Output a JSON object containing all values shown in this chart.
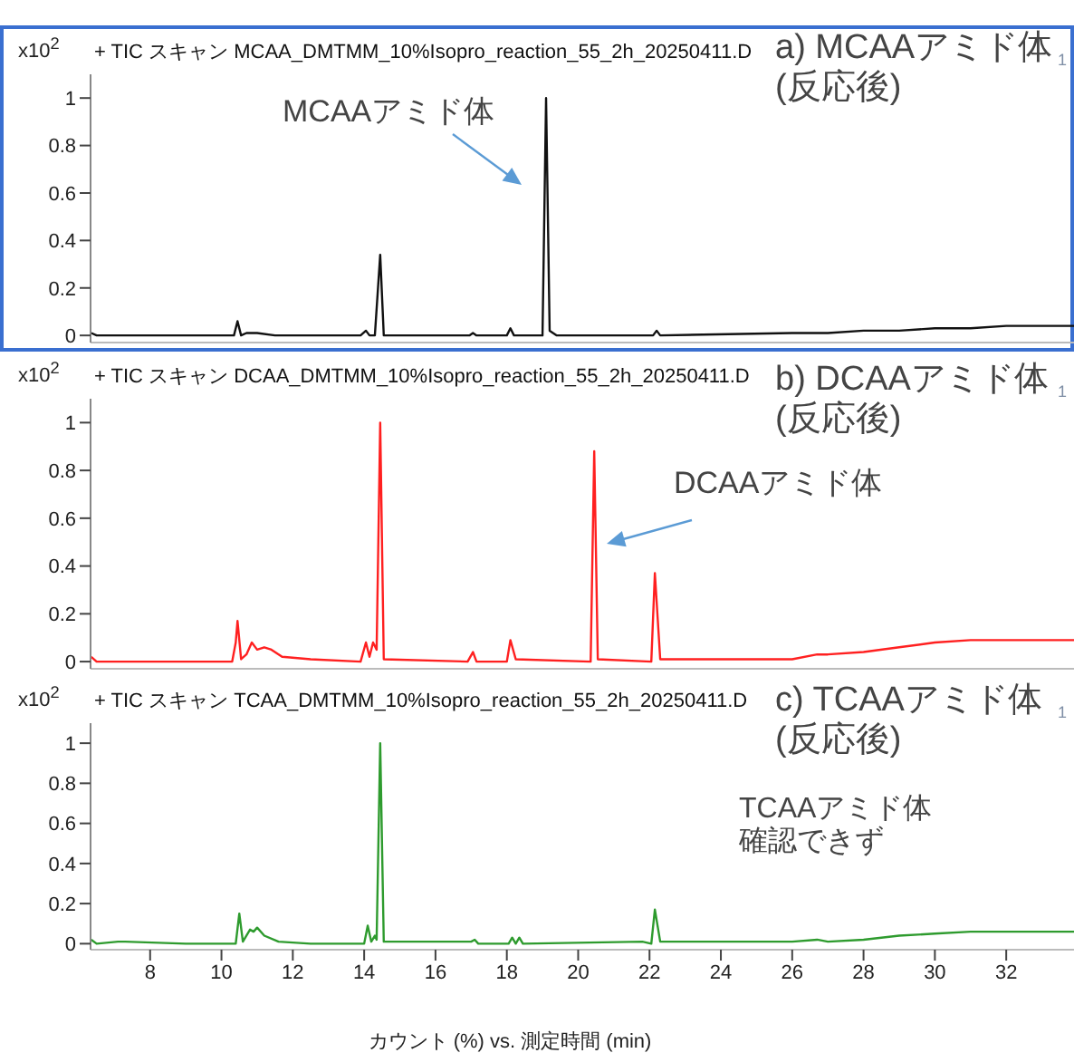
{
  "chart_data": [
    {
      "type": "line",
      "title": "+ TIC スキャン MCAA_DMTMM_10%Isopro_reaction_55_2h_20250411.D",
      "ylabel": "x10$^{2}$",
      "xlim": [
        6.33,
        33.9
      ],
      "ylim": [
        -0.03,
        1.1
      ],
      "yticks": [
        0,
        0.2,
        0.4,
        0.6,
        0.8,
        1
      ],
      "tick_labels": "y",
      "annotations": [
        "a) MCAAアミド体\n(反応後)",
        "1",
        "MCAAアミド体"
      ],
      "series": [
        {
          "color": "#111111",
          "x": [
            6.35,
            6.5,
            7.5,
            9,
            10.35,
            10.45,
            10.55,
            10.7,
            11,
            11.5,
            13.9,
            14.05,
            14.15,
            14.3,
            14.45,
            14.55,
            16.95,
            17.05,
            17.15,
            18,
            18.1,
            18.2,
            19.0,
            19.1,
            19.2,
            19.4,
            22.1,
            22.2,
            22.3,
            26,
            27,
            28,
            29,
            30,
            31,
            32,
            33,
            33.9
          ],
          "values": [
            0.01,
            0,
            0,
            0,
            0,
            0.06,
            0,
            0.01,
            0.01,
            0,
            0,
            0.02,
            0,
            0,
            0.34,
            0,
            0,
            0.01,
            0,
            0,
            0.03,
            0,
            0,
            1.0,
            0.02,
            0,
            0,
            0.02,
            0,
            0.01,
            0.01,
            0.02,
            0.02,
            0.03,
            0.03,
            0.04,
            0.04,
            0.04
          ]
        }
      ]
    },
    {
      "type": "line",
      "title": "+ TIC スキャン DCAA_DMTMM_10%Isopro_reaction_55_2h_20250411.D",
      "ylabel": "x10$^{2}$",
      "xlim": [
        6.33,
        33.9
      ],
      "ylim": [
        -0.03,
        1.1
      ],
      "yticks": [
        0,
        0.2,
        0.4,
        0.6,
        0.8,
        1
      ],
      "tick_labels": "y",
      "annotations": [
        "b) DCAAアミド体\n(反応後)",
        "1",
        "DCAAアミド体"
      ],
      "series": [
        {
          "color": "#ff2020",
          "x": [
            6.35,
            6.5,
            9,
            10.3,
            10.4,
            10.45,
            10.55,
            10.7,
            10.85,
            11.0,
            11.2,
            11.4,
            11.7,
            12.5,
            13.9,
            14.05,
            14.15,
            14.25,
            14.35,
            14.45,
            14.55,
            16.9,
            17.05,
            17.15,
            18,
            18.1,
            18.25,
            20.35,
            20.45,
            20.55,
            22.05,
            22.15,
            22.3,
            26,
            26.7,
            27,
            28,
            29,
            30,
            31,
            32,
            33,
            33.9
          ],
          "values": [
            0.02,
            0,
            0,
            0,
            0.08,
            0.17,
            0.01,
            0.03,
            0.08,
            0.05,
            0.06,
            0.05,
            0.02,
            0.01,
            0,
            0.08,
            0.02,
            0.08,
            0.05,
            1.0,
            0.01,
            0,
            0.04,
            0,
            0,
            0.09,
            0.01,
            0,
            0.88,
            0.01,
            0,
            0.37,
            0.01,
            0.01,
            0.03,
            0.03,
            0.04,
            0.06,
            0.08,
            0.09,
            0.09,
            0.09,
            0.09
          ]
        }
      ]
    },
    {
      "type": "line",
      "title": "+ TIC スキャン TCAA_DMTMM_10%Isopro_reaction_55_2h_20250411.D",
      "ylabel": "x10$^{2}$",
      "xlabel": "カウント (%) vs. 測定時間 (min)",
      "xlim": [
        6.33,
        33.9
      ],
      "ylim": [
        -0.03,
        1.1
      ],
      "xticks": [
        8,
        10,
        12,
        14,
        16,
        18,
        20,
        22,
        24,
        26,
        28,
        30,
        32
      ],
      "yticks": [
        0,
        0.2,
        0.4,
        0.6,
        0.8,
        1
      ],
      "annotations": [
        "c) TCAAアミド体\n(反応後)",
        "1",
        "TCAAアミド体確認できず"
      ],
      "series": [
        {
          "color": "#2e9b2e",
          "x": [
            6.35,
            6.5,
            7.1,
            7.3,
            9,
            10.4,
            10.5,
            10.6,
            10.8,
            10.9,
            11.0,
            11.2,
            11.6,
            12.5,
            14.0,
            14.1,
            14.2,
            14.3,
            14.35,
            14.45,
            14.55,
            17.0,
            17.1,
            17.2,
            18.05,
            18.15,
            18.25,
            18.35,
            18.45,
            21.8,
            22.05,
            22.15,
            22.3,
            26,
            26.7,
            27,
            28,
            29,
            30,
            31,
            32,
            33.9
          ],
          "values": [
            0.02,
            0,
            0.01,
            0.01,
            0,
            0,
            0.15,
            0.01,
            0.07,
            0.06,
            0.08,
            0.04,
            0.01,
            0,
            0,
            0.09,
            0.01,
            0.04,
            0.02,
            1.0,
            0.01,
            0.01,
            0.02,
            0,
            0,
            0.03,
            0,
            0.03,
            0,
            0.01,
            0,
            0.17,
            0.01,
            0.01,
            0.02,
            0.01,
            0.02,
            0.04,
            0.05,
            0.06,
            0.06,
            0.06
          ]
        }
      ]
    }
  ]
}
